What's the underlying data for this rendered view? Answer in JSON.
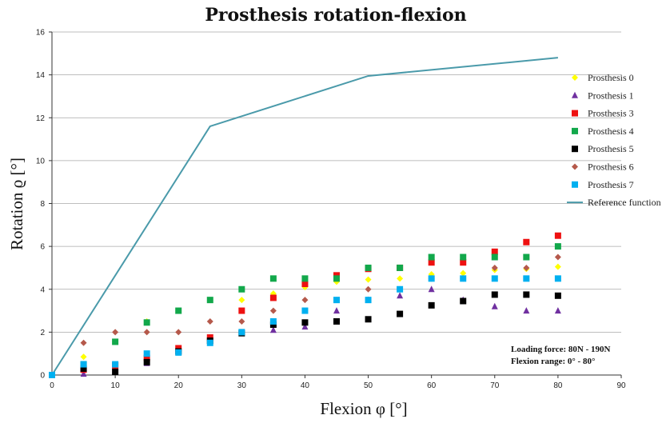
{
  "chart_data": {
    "type": "scatter",
    "title": "Prosthesis rotation-flexion",
    "xlabel": "Flexion φ [°]",
    "ylabel": "Rotation ϱ [°]",
    "xlim": [
      0,
      90
    ],
    "ylim": [
      0,
      16
    ],
    "xticks": [
      "0",
      "10",
      "20",
      "30",
      "40",
      "50",
      "60",
      "70",
      "80",
      "90"
    ],
    "yticks": [
      "0",
      "2",
      "4",
      "6",
      "8",
      "10",
      "12",
      "14",
      "16"
    ],
    "grid": "horizontal",
    "legend_position": "right",
    "annotations": [
      "Loading force: 80N - 190N",
      "Flexion range: 0° - 80°"
    ],
    "series": [
      {
        "name": "Prosthesis 0",
        "marker": "diamond",
        "color": "#ffff00",
        "x": [
          0,
          5,
          10,
          15,
          20,
          25,
          30,
          35,
          40,
          45,
          50,
          55,
          60,
          65,
          70,
          75,
          80
        ],
        "y": [
          0,
          0.85,
          1.55,
          2.5,
          3.0,
          3.5,
          3.5,
          3.8,
          4.1,
          4.35,
          4.45,
          4.5,
          4.7,
          4.75,
          4.9,
          4.95,
          5.05
        ]
      },
      {
        "name": "Prosthesis 1",
        "marker": "triangle",
        "color": "#7030a0",
        "x": [
          0,
          5,
          10,
          15,
          20,
          25,
          30,
          35,
          40,
          45,
          50,
          55,
          60,
          65,
          70,
          75,
          80
        ],
        "y": [
          0,
          0.05,
          0.2,
          0.55,
          1.15,
          1.6,
          1.95,
          2.1,
          2.25,
          3.0,
          3.5,
          3.7,
          4.0,
          3.5,
          3.2,
          3.0,
          3.0
        ]
      },
      {
        "name": "Prosthesis 3",
        "marker": "square",
        "color": "#ee1111",
        "x": [
          0,
          5,
          10,
          15,
          20,
          25,
          30,
          35,
          40,
          45,
          50,
          55,
          60,
          65,
          70,
          75,
          80
        ],
        "y": [
          0,
          0.25,
          0.45,
          0.8,
          1.25,
          1.75,
          3.0,
          3.6,
          4.25,
          4.65,
          4.95,
          5.0,
          5.25,
          5.25,
          5.75,
          6.2,
          6.5
        ]
      },
      {
        "name": "Prosthesis 4",
        "marker": "square",
        "color": "#12a84b",
        "x": [
          0,
          5,
          10,
          15,
          20,
          25,
          30,
          35,
          40,
          45,
          50,
          55,
          60,
          65,
          70,
          75,
          80
        ],
        "y": [
          0,
          0.5,
          1.55,
          2.45,
          3.0,
          3.5,
          4.0,
          4.5,
          4.5,
          4.5,
          5.0,
          5.0,
          5.5,
          5.5,
          5.5,
          5.5,
          6.0
        ]
      },
      {
        "name": "Prosthesis 5",
        "marker": "square",
        "color": "#000000",
        "x": [
          0,
          5,
          10,
          15,
          20,
          25,
          30,
          35,
          40,
          45,
          50,
          55,
          60,
          65,
          70,
          75,
          80
        ],
        "y": [
          0,
          0.3,
          0.15,
          0.6,
          1.1,
          1.6,
          1.95,
          2.35,
          2.45,
          2.5,
          2.6,
          2.85,
          3.25,
          3.45,
          3.75,
          3.75,
          3.7
        ]
      },
      {
        "name": "Prosthesis 6",
        "marker": "diamond",
        "color": "#b5594b",
        "x": [
          0,
          5,
          10,
          15,
          20,
          25,
          30,
          35,
          40,
          45,
          50,
          55,
          60,
          65,
          70,
          75,
          80
        ],
        "y": [
          0,
          1.5,
          2.0,
          2.0,
          2.0,
          2.5,
          2.5,
          3.0,
          3.5,
          3.5,
          4.0,
          4.0,
          4.5,
          4.5,
          5.0,
          5.0,
          5.5
        ]
      },
      {
        "name": "Prosthesis 7",
        "marker": "square",
        "color": "#00b0f0",
        "x": [
          0,
          5,
          10,
          15,
          20,
          25,
          30,
          35,
          40,
          45,
          50,
          55,
          60,
          65,
          70,
          75,
          80
        ],
        "y": [
          0,
          0.5,
          0.5,
          1.0,
          1.05,
          1.5,
          2.0,
          2.5,
          3.0,
          3.5,
          3.5,
          4.0,
          4.5,
          4.5,
          4.5,
          4.5,
          4.5
        ]
      },
      {
        "name": "Reference function",
        "marker": "line",
        "color": "#4a9aaa",
        "x": [
          0,
          25,
          50,
          80
        ],
        "y": [
          0,
          11.6,
          13.95,
          14.8
        ]
      }
    ]
  }
}
